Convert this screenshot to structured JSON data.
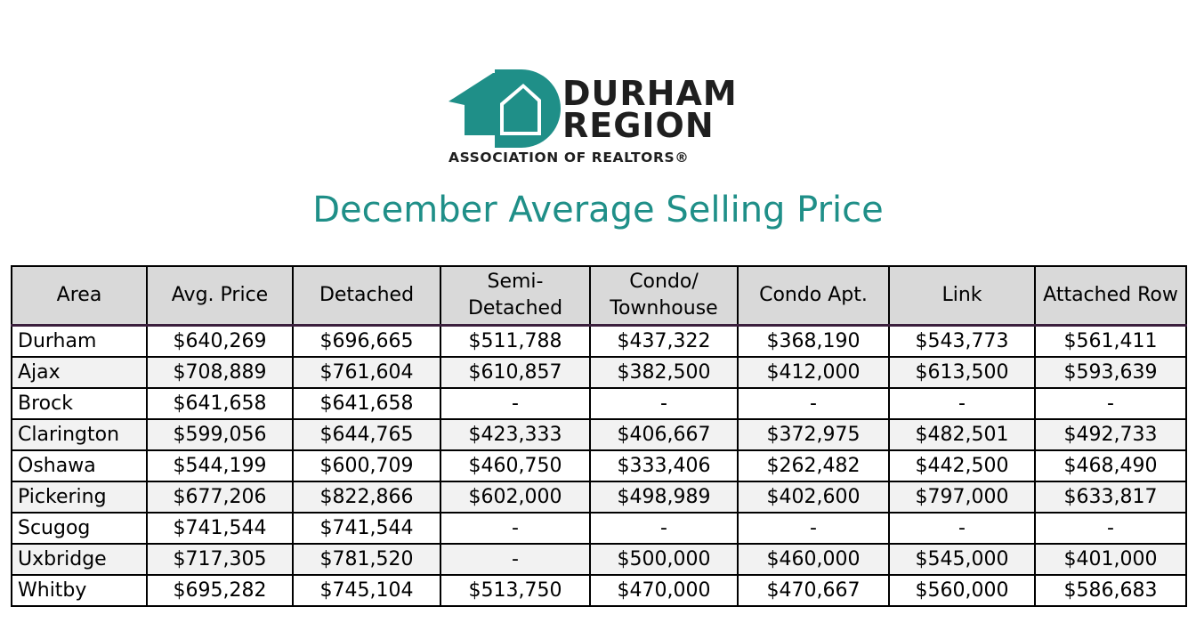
{
  "logo": {
    "line1": "DURHAM",
    "line2": "REGION",
    "subtitle": "ASSOCIATION OF REALTORS®",
    "colors": {
      "teal": "#1f8f88",
      "dark": "#1f1f1f"
    }
  },
  "title": "December Average Selling Price",
  "table": {
    "headers": [
      "Area",
      "Avg. Price",
      "Detached",
      "Semi-Detached",
      "Condo/ Townhouse",
      "Condo Apt.",
      "Link",
      "Attached Row"
    ],
    "rows": [
      [
        "Durham",
        "$640,269",
        "$696,665",
        "$511,788",
        "$437,322",
        "$368,190",
        "$543,773",
        "$561,411"
      ],
      [
        "Ajax",
        "$708,889",
        "$761,604",
        "$610,857",
        "$382,500",
        "$412,000",
        "$613,500",
        "$593,639"
      ],
      [
        "Brock",
        "$641,658",
        "$641,658",
        "-",
        "-",
        "-",
        "-",
        "-"
      ],
      [
        "Clarington",
        "$599,056",
        "$644,765",
        "$423,333",
        "$406,667",
        "$372,975",
        "$482,501",
        "$492,733"
      ],
      [
        "Oshawa",
        "$544,199",
        "$600,709",
        "$460,750",
        "$333,406",
        "$262,482",
        "$442,500",
        "$468,490"
      ],
      [
        "Pickering",
        "$677,206",
        "$822,866",
        "$602,000",
        "$498,989",
        "$402,600",
        "$797,000",
        "$633,817"
      ],
      [
        "Scugog",
        "$741,544",
        "$741,544",
        "-",
        "-",
        "-",
        "-",
        "-"
      ],
      [
        "Uxbridge",
        "$717,305",
        "$781,520",
        "-",
        "$500,000",
        "$460,000",
        "$545,000",
        "$401,000"
      ],
      [
        "Whitby",
        "$695,282",
        "$745,104",
        "$513,750",
        "$470,000",
        "$470,667",
        "$560,000",
        "$586,683"
      ]
    ]
  }
}
